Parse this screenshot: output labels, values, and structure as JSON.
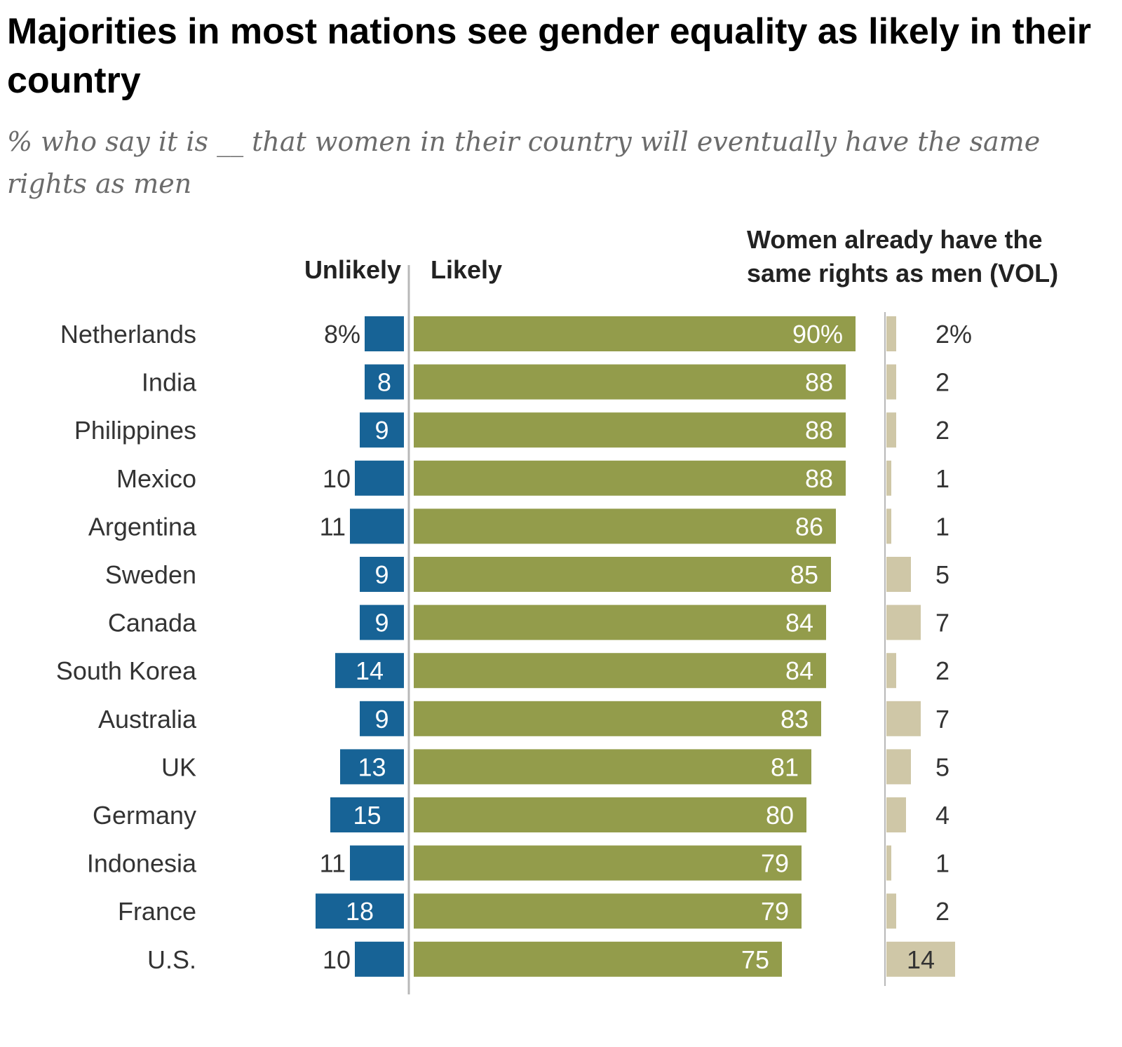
{
  "title": "Majorities in most nations see gender equality as likely in their country",
  "subtitle": "% who say it is __ that women in their country will eventually have the same rights as men",
  "colors": {
    "unlikely": "#176396",
    "likely": "#939c4b",
    "already": "#cfc7a7",
    "axis": "#b8b8b8",
    "country_text": "#333333",
    "value_text": "#333333",
    "in_bar_text": "#ffffff",
    "header_text": "#222222"
  },
  "chart_data": {
    "type": "bar",
    "stacked": "diverging",
    "title": "Majorities in most nations see gender equality as likely in their country",
    "subtitle": "% who say it is __ that women in their country will eventually have the same rights as men",
    "column_headers": {
      "unlikely": "Unlikely",
      "likely": "Likely",
      "already": [
        "Women already have the",
        "same rights as men (VOL)"
      ]
    },
    "categories": [
      "Netherlands",
      "India",
      "Philippines",
      "Mexico",
      "Argentina",
      "Sweden",
      "Canada",
      "South Korea",
      "Australia",
      "UK",
      "Germany",
      "Indonesia",
      "France",
      "U.S."
    ],
    "series": [
      {
        "name": "Unlikely",
        "values": [
          8,
          8,
          9,
          10,
          11,
          9,
          9,
          14,
          9,
          13,
          15,
          11,
          18,
          10
        ]
      },
      {
        "name": "Likely",
        "values": [
          90,
          88,
          88,
          88,
          86,
          85,
          84,
          84,
          83,
          81,
          80,
          79,
          79,
          75
        ]
      },
      {
        "name": "Women already have the same rights as men (VOL)",
        "values": [
          2,
          2,
          2,
          1,
          1,
          5,
          7,
          2,
          7,
          5,
          4,
          1,
          2,
          14
        ]
      }
    ],
    "value_labels": {
      "unlikely": [
        "8%",
        "8",
        "9",
        "10",
        "11",
        "9",
        "9",
        "14",
        "9",
        "13",
        "15",
        "11",
        "18",
        "10"
      ],
      "likely": [
        "90%",
        "88",
        "88",
        "88",
        "86",
        "85",
        "84",
        "84",
        "83",
        "81",
        "80",
        "79",
        "79",
        "75"
      ],
      "already": [
        "2%",
        "2",
        "2",
        "1",
        "1",
        "5",
        "7",
        "2",
        "7",
        "5",
        "4",
        "1",
        "2",
        "14"
      ]
    },
    "unlikely_label_inside": [
      false,
      true,
      true,
      false,
      false,
      true,
      true,
      true,
      true,
      true,
      true,
      false,
      true,
      false
    ],
    "already_label_inside": [
      false,
      false,
      false,
      false,
      false,
      false,
      false,
      false,
      false,
      false,
      false,
      false,
      false,
      true
    ],
    "unit": "%",
    "ylim": [
      0,
      100
    ],
    "legend": "none",
    "grid": false
  }
}
